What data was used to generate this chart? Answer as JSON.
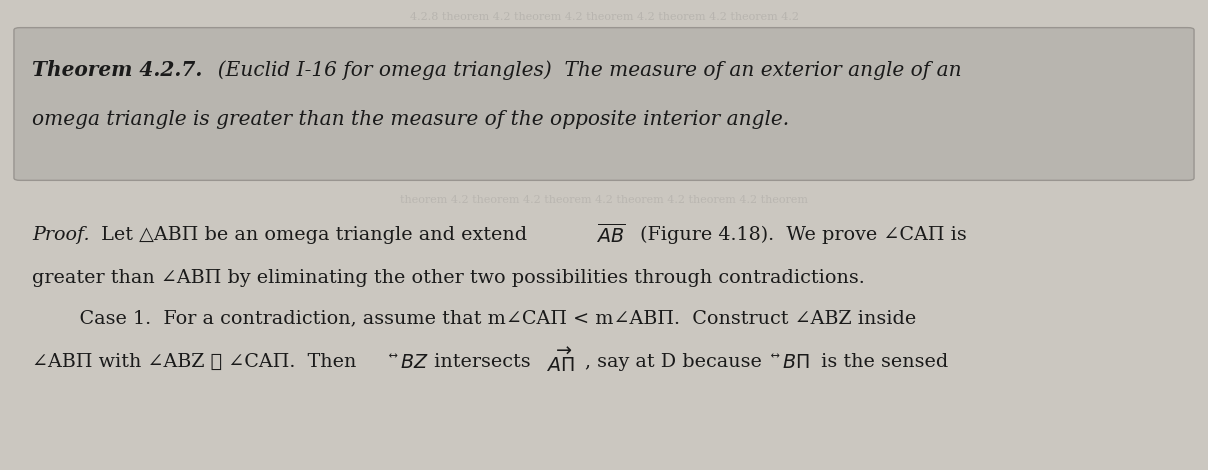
{
  "fig_width": 12.08,
  "fig_height": 4.7,
  "dpi": 100,
  "page_bg_color": "#cbc7c0",
  "theorem_box_color": "#b8b5af",
  "theorem_box_edge": "#999590",
  "text_color": "#1a1a1a",
  "watermark_color": "#b0ada8",
  "theorem_line1_bold": "Theorem 4.2.7.",
  "theorem_line1_rest": "  (Euclid I-16 for omega triangles)  The measure of an exterior angle of an",
  "theorem_line2": "omega triangle is greater than the measure of the opposite interior angle.",
  "proof_word": "Proof.",
  "proof_line1_rest": " Let △ABΠ be an omega triangle and extend ",
  "proof_line1_AB": "AB",
  "proof_line1_end": " (Figure 4.18).  We prove ∠CAΠ is",
  "proof_line2": "greater than ∠ABΠ by eliminating the other two possibilities through contradictions.",
  "proof_line3_indent": "    Case 1.  For a contradiction, assume that m∠CAΠ < m∠ABΠ.  Construct ∠ABZ inside",
  "proof_line4_a": "∠ABΠ with ∠ABZ ≅ ∠CAΠ.  Then ",
  "proof_line4_BZ": "BZ",
  "proof_line4_mid": " intersects ",
  "proof_line4_AO": "AΠ",
  "proof_line4_mid2": ", say at D because ",
  "proof_line4_BO": "BΠ",
  "proof_line4_end": " is the sensed",
  "watermark_top": "4.2.8 theorem 4.2 theorem 4.2 theorem 4.2 theorem 4.2 theorem 4.2",
  "watermark_mid": "theorem 4.2 theorem 4.2 theorem 4.2 theorem 4.2 theorem 4.2 theorem"
}
